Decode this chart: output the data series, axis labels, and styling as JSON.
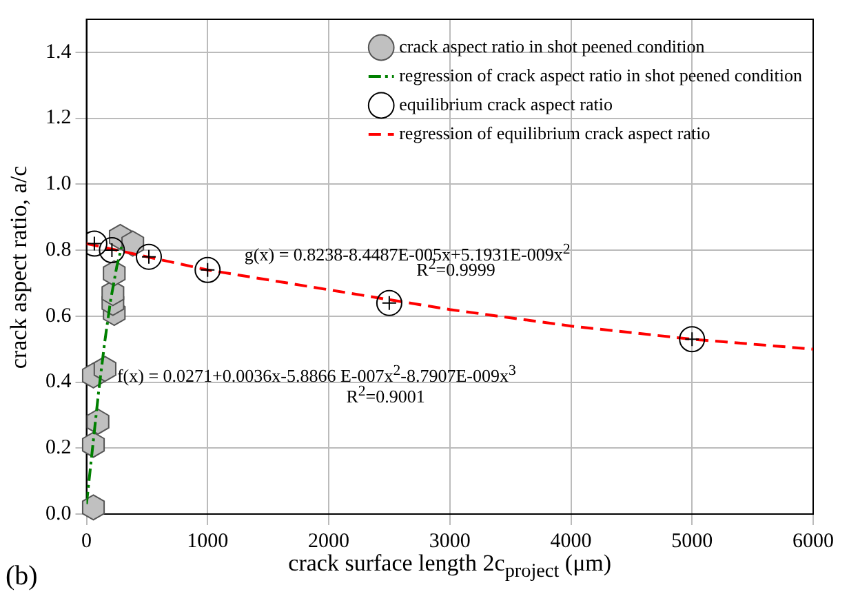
{
  "chart_data": {
    "type": "scatter",
    "xlabel": "crack surface length 2c$_{project}$ (μm)",
    "ylabel": "crack aspect ratio, a/c",
    "xlim": [
      0,
      6000
    ],
    "xticks": [
      0,
      1000,
      2000,
      3000,
      4000,
      5000,
      6000
    ],
    "ylim": [
      0,
      1.5
    ],
    "yticks": [
      {
        "value": 0,
        "label": "0.0"
      },
      0.2,
      0.4,
      0.6,
      0.8,
      {
        "value": 1,
        "label": "1.0"
      },
      1.2,
      1.4
    ],
    "grid": true,
    "legend": "top right",
    "series": [
      {
        "name": "crack aspect ratio in shot peened condition",
        "color": "#c0c0c0",
        "x": [
          57,
          57,
          95,
          57,
          153,
          229,
          218,
          218,
          229,
          279,
          382
        ],
        "values": [
          0.02,
          0.21,
          0.28,
          0.42,
          0.44,
          0.61,
          0.64,
          0.67,
          0.73,
          0.84,
          0.82
        ]
      },
      {
        "name": "regression of crack aspect ratio in shot peened condition",
        "type": "line",
        "line_style": "dashdot",
        "marker": "none",
        "color": "#008000",
        "x": [
          0,
          50,
          100,
          150,
          200,
          250,
          290
        ],
        "values": [
          0.03,
          0.2,
          0.37,
          0.52,
          0.65,
          0.75,
          0.81
        ]
      },
      {
        "name": "equilibrium crack aspect ratio",
        "type": "scatter",
        "marker": "circle",
        "color": "#000000",
        "x": [
          65,
          210,
          515,
          1000,
          2500,
          5000
        ],
        "values": [
          0.82,
          0.8,
          0.78,
          0.74,
          0.64,
          0.53
        ]
      },
      {
        "name": "regression of equilibrium crack aspect ratio",
        "type": "line",
        "line_style": "dashed",
        "marker": "none",
        "color": "#ff0000",
        "x": [
          0,
          1000,
          2000,
          3000,
          4000,
          5000,
          6000
        ],
        "values": [
          0.82,
          0.74,
          0.68,
          0.62,
          0.57,
          0.53,
          0.5
        ]
      }
    ],
    "annotations": [
      "g(x) = 0.8238-8.4487E-005x+5.1931E-009x$^{2}$",
      "R$^{2}$=0.9999",
      "f(x) = 0.0271+0.0036x-5.8866 E-007x$^{2}$-8.7907E-009x$^{3}$",
      "R$^{2}$=0.9001",
      "(b)"
    ]
  }
}
